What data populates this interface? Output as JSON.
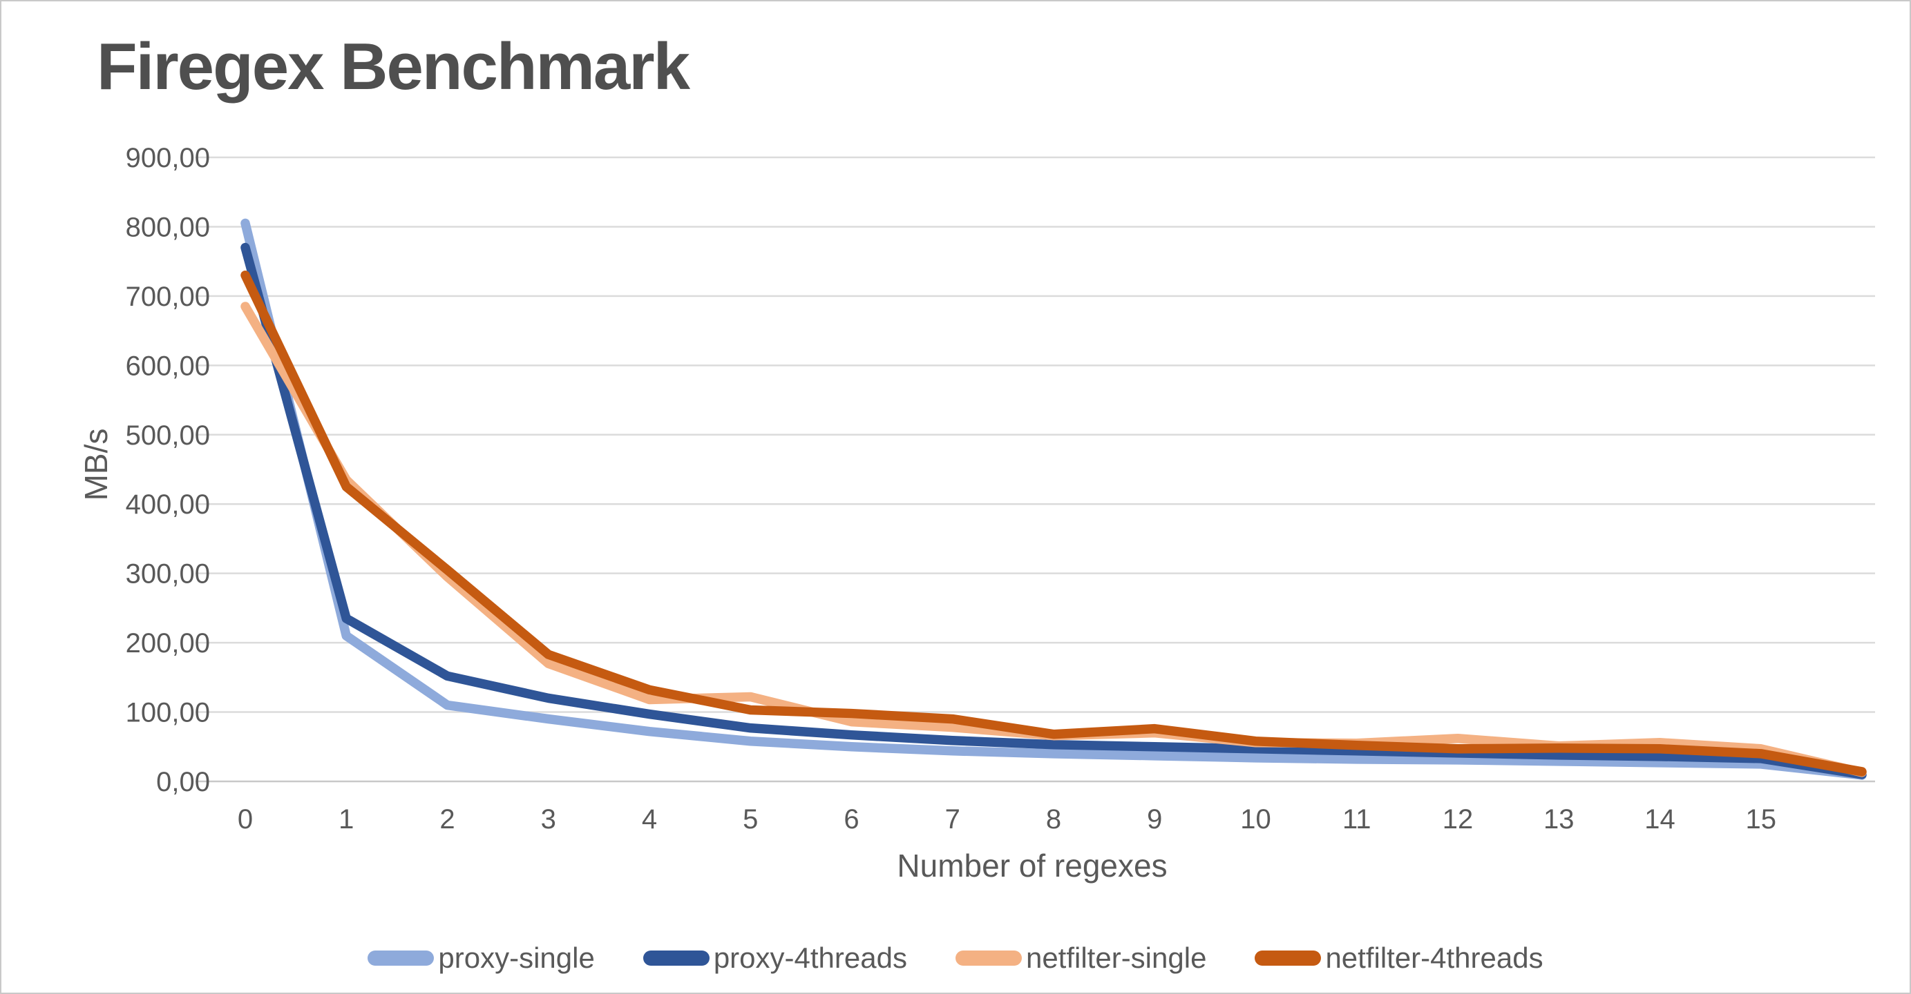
{
  "title": "Firegex Benchmark",
  "chart_data": {
    "type": "line",
    "title": "Firegex Benchmark",
    "xlabel": "Number of regexes",
    "ylabel": "MB/s",
    "x": [
      0,
      1,
      2,
      3,
      4,
      5,
      6,
      7,
      8,
      9,
      10,
      11,
      12,
      13,
      14,
      15,
      16
    ],
    "x_tick_labels": [
      "0",
      "1",
      "2",
      "3",
      "4",
      "5",
      "6",
      "7",
      "8",
      "9",
      "10",
      "11",
      "12",
      "13",
      "14",
      "15"
    ],
    "y_tick_labels": [
      "0,00",
      "100,00",
      "200,00",
      "300,00",
      "400,00",
      "500,00",
      "600,00",
      "700,00",
      "800,00",
      "900,00"
    ],
    "ylim": [
      0,
      900
    ],
    "y_tick_step": 100,
    "grid": true,
    "legend_position": "bottom",
    "series": [
      {
        "name": "proxy-single",
        "color": "#8EAADB",
        "values": [
          805,
          210,
          110,
          90,
          72,
          58,
          50,
          44,
          40,
          37,
          34,
          32,
          31,
          29,
          27,
          25,
          9
        ]
      },
      {
        "name": "proxy-4threads",
        "color": "#2F5597",
        "values": [
          770,
          235,
          152,
          120,
          97,
          77,
          67,
          59,
          53,
          50,
          47,
          44,
          41,
          38,
          36,
          33,
          10
        ]
      },
      {
        "name": "netfilter-single",
        "color": "#F4B183",
        "values": [
          685,
          435,
          295,
          170,
          118,
          122,
          86,
          78,
          66,
          70,
          56,
          55,
          62,
          51,
          56,
          47,
          13
        ]
      },
      {
        "name": "netfilter-4threads",
        "color": "#C55A11",
        "values": [
          730,
          425,
          305,
          183,
          132,
          103,
          98,
          90,
          68,
          76,
          58,
          52,
          47,
          48,
          47,
          40,
          14
        ]
      }
    ],
    "colors": {
      "gridline": "#DBDBDB",
      "axis_line": "#C8C8C8",
      "axis_text": "#595959",
      "title_text": "#4F4F4F"
    }
  }
}
